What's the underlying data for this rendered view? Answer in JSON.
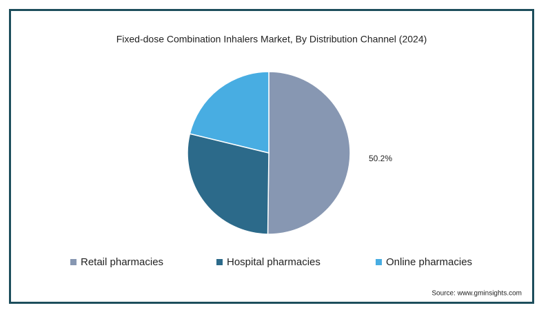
{
  "chart_data": {
    "type": "pie",
    "title": "Fixed-dose Combination Inhalers Market, By Distribution Channel (2024)",
    "categories": [
      "Retail pharmacies",
      "Hospital pharmacies",
      "Online pharmacies"
    ],
    "values": [
      50.2,
      28.6,
      21.2
    ],
    "value_labels": [
      "50.2%",
      null,
      null
    ],
    "colors": [
      "#8797b2",
      "#2c6a8a",
      "#48ade2"
    ],
    "legend": "bottom",
    "source": "Source: www.gminsights.com"
  }
}
